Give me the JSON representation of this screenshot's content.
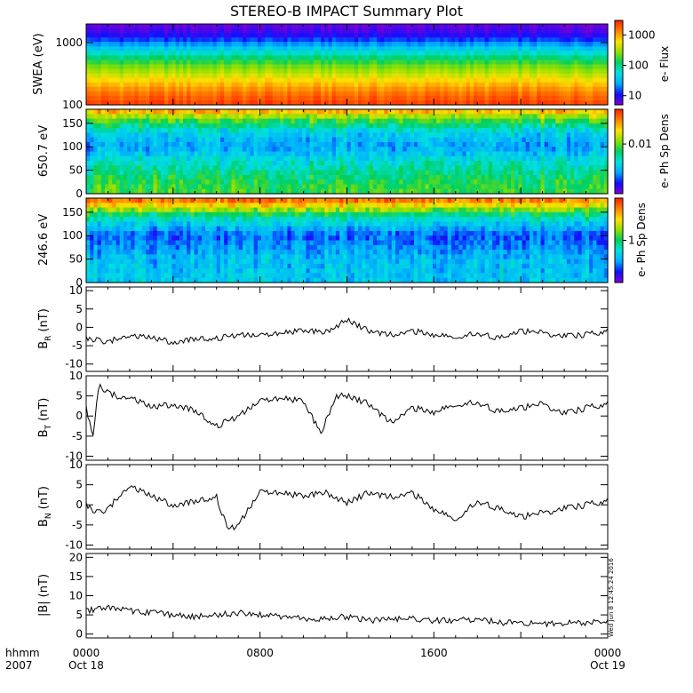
{
  "title": "STEREO-B IMPACT Summary Plot",
  "stamp": "Wed Jun  8 12:45:24 2016",
  "time_axis": {
    "label_line1": "hhmm",
    "label_line2": "2007",
    "ticks": [
      {
        "hour": 0,
        "label": "0000",
        "date": "Oct 18"
      },
      {
        "hour": 8,
        "label": "0800",
        "date": ""
      },
      {
        "hour": 16,
        "label": "1600",
        "date": ""
      },
      {
        "hour": 24,
        "label": "0000",
        "date": "Oct 19"
      }
    ]
  },
  "colors": {
    "spectrum": [
      "#7b00d6",
      "#1010ff",
      "#00aaff",
      "#00e0e0",
      "#00d060",
      "#8ee000",
      "#ffe000",
      "#ff8000",
      "#ff2000"
    ]
  },
  "chart_data": [
    {
      "type": "heatmap",
      "name": "swea",
      "ylabel": "SWEA (eV)",
      "yscale": "log",
      "ylim": [
        100,
        2000
      ],
      "yticks": [
        {
          "value": 100,
          "label": "100"
        },
        {
          "value": 1000,
          "label": "1000"
        }
      ],
      "colorbar": {
        "label": "e- Flux",
        "scale": "log",
        "range": [
          5,
          3000
        ],
        "ticks": [
          {
            "value": 10,
            "label": "10"
          },
          {
            "value": 100,
            "label": "100"
          },
          {
            "value": 1000,
            "label": "1000"
          }
        ]
      },
      "row_levels": [
        0.97,
        0.94,
        0.9,
        0.84,
        0.76,
        0.68,
        0.6,
        0.53,
        0.46,
        0.4,
        0.35,
        0.3,
        0.25,
        0.2,
        0.15,
        0.11,
        0.08,
        0.05
      ]
    },
    {
      "type": "heatmap",
      "name": "pad650",
      "ylabel": "650.7 eV",
      "ylim": [
        0,
        180
      ],
      "yticks": [
        {
          "value": 0,
          "label": "0"
        },
        {
          "value": 50,
          "label": "50"
        },
        {
          "value": 100,
          "label": "100"
        },
        {
          "value": 150,
          "label": "150"
        }
      ],
      "colorbar": {
        "label": "e- Ph Sp Dens",
        "scale": "log",
        "range": [
          0.001,
          0.05
        ],
        "ticks": [
          {
            "value": 0.01,
            "label": "0.01"
          }
        ]
      },
      "profile": [
        {
          "pitch": 0,
          "level": 0.55
        },
        {
          "pitch": 30,
          "level": 0.5
        },
        {
          "pitch": 70,
          "level": 0.38
        },
        {
          "pitch": 100,
          "level": 0.25
        },
        {
          "pitch": 130,
          "level": 0.33
        },
        {
          "pitch": 160,
          "level": 0.58
        },
        {
          "pitch": 180,
          "level": 0.85
        }
      ]
    },
    {
      "type": "heatmap",
      "name": "pad246",
      "ylabel": "246.6 eV",
      "ylim": [
        0,
        180
      ],
      "yticks": [
        {
          "value": 0,
          "label": "0"
        },
        {
          "value": 50,
          "label": "50"
        },
        {
          "value": 100,
          "label": "100"
        },
        {
          "value": 150,
          "label": "150"
        }
      ],
      "colorbar": {
        "label": "e- Ph Sp Dens",
        "scale": "log",
        "range": [
          0.1,
          10
        ],
        "ticks": [
          {
            "value": 1,
            "label": "1"
          }
        ]
      },
      "profile": [
        {
          "pitch": 0,
          "level": 0.32
        },
        {
          "pitch": 50,
          "level": 0.3
        },
        {
          "pitch": 100,
          "level": 0.18
        },
        {
          "pitch": 140,
          "level": 0.42
        },
        {
          "pitch": 165,
          "level": 0.75
        },
        {
          "pitch": 180,
          "level": 0.93
        }
      ]
    },
    {
      "type": "line",
      "name": "br",
      "ylabel_main": "B",
      "ylabel_sub": "R",
      "ylabel_unit": "(nT)",
      "ylim": [
        -12,
        11
      ],
      "yticks": [
        {
          "value": -10,
          "label": "-10"
        },
        {
          "value": -5,
          "label": "-5"
        },
        {
          "value": 0,
          "label": "0"
        },
        {
          "value": 5,
          "label": "5"
        },
        {
          "value": 10,
          "label": "10"
        }
      ],
      "x": [
        0,
        1,
        2,
        3,
        4,
        5,
        6,
        7,
        8,
        9,
        10,
        11,
        12,
        13,
        14,
        15,
        16,
        17,
        18,
        19,
        20,
        21,
        22,
        23,
        24
      ],
      "y": [
        -3,
        -4,
        -2,
        -3,
        -4,
        -3,
        -3,
        -2,
        -2,
        -1.5,
        -1,
        -1.5,
        2,
        -1,
        -2,
        -1,
        -2,
        -3,
        -1.5,
        -3,
        -1,
        -1.5,
        -2.5,
        -2,
        -1
      ]
    },
    {
      "type": "line",
      "name": "bt",
      "ylabel_main": "B",
      "ylabel_sub": "T",
      "ylabel_unit": "(nT)",
      "ylim": [
        -11,
        10
      ],
      "yticks": [
        {
          "value": -10,
          "label": "-10"
        },
        {
          "value": -5,
          "label": "-5"
        },
        {
          "value": 0,
          "label": "0"
        },
        {
          "value": 5,
          "label": "5"
        },
        {
          "value": 10,
          "label": "10"
        }
      ],
      "x": [
        0,
        0.3,
        0.6,
        1,
        1.5,
        2,
        3,
        4,
        5,
        6,
        7,
        8,
        9,
        10,
        10.8,
        11.5,
        12,
        13,
        14,
        15,
        16,
        17,
        18,
        19,
        20,
        21,
        22,
        23,
        24
      ],
      "y": [
        2,
        -5,
        7.5,
        6,
        4.5,
        5,
        2,
        3,
        1.5,
        -2.5,
        0,
        4,
        4.5,
        3.5,
        -4.5,
        5,
        5,
        3,
        -1.5,
        2,
        1,
        2.5,
        3.5,
        1,
        2,
        3,
        0.5,
        2,
        3
      ]
    },
    {
      "type": "line",
      "name": "bn",
      "ylabel_main": "B",
      "ylabel_sub": "N",
      "ylabel_unit": "(nT)",
      "ylim": [
        -11,
        10
      ],
      "yticks": [
        {
          "value": -10,
          "label": "-10"
        },
        {
          "value": -5,
          "label": "-5"
        },
        {
          "value": 0,
          "label": "0"
        },
        {
          "value": 5,
          "label": "5"
        },
        {
          "value": 10,
          "label": "10"
        }
      ],
      "x": [
        0,
        0.5,
        1,
        2,
        3,
        4,
        5,
        6,
        6.5,
        7,
        8,
        9,
        10,
        11,
        12,
        13,
        14,
        15,
        16,
        17,
        18,
        19,
        20,
        21,
        22,
        23,
        24
      ],
      "y": [
        0,
        -2,
        -1,
        5,
        2,
        0,
        1,
        2,
        -6,
        -5,
        3.5,
        3,
        2,
        3,
        0.5,
        3,
        2,
        3,
        -1,
        -4,
        1,
        -1,
        -3,
        -2,
        -1,
        0,
        1
      ]
    },
    {
      "type": "line",
      "name": "bmag",
      "ylabel_main": "|B|",
      "ylabel_sub": "",
      "ylabel_unit": "(nT)",
      "ylim": [
        -1,
        21
      ],
      "yticks": [
        {
          "value": 0,
          "label": "0"
        },
        {
          "value": 5,
          "label": "5"
        },
        {
          "value": 10,
          "label": "10"
        },
        {
          "value": 15,
          "label": "15"
        },
        {
          "value": 20,
          "label": "20"
        }
      ],
      "x": [
        0,
        1,
        2,
        3,
        4,
        5,
        6,
        7,
        8,
        9,
        10,
        11,
        12,
        13,
        14,
        15,
        16,
        17,
        18,
        19,
        20,
        21,
        22,
        23,
        24
      ],
      "y": [
        6,
        7,
        6,
        5.5,
        5,
        4.5,
        5,
        5.5,
        5,
        4.5,
        4,
        4,
        4.5,
        3.5,
        4,
        4,
        3.5,
        3.5,
        4,
        3,
        3,
        2.5,
        3,
        3,
        3.5
      ]
    }
  ]
}
